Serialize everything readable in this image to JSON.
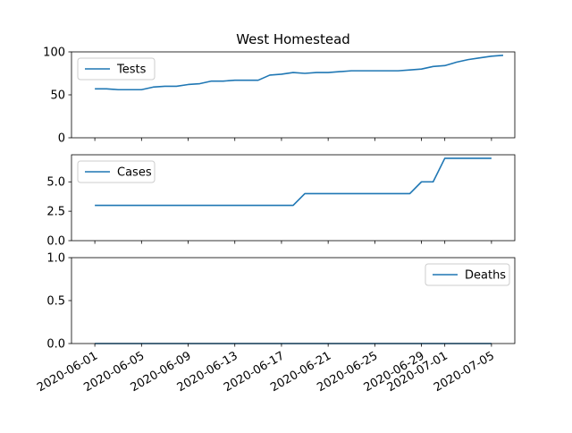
{
  "chart_data": {
    "type": "line",
    "title": "West Homestead",
    "line_color": "#1f77b4",
    "x_labels": [
      "2020-06-01",
      "2020-06-05",
      "2020-06-09",
      "2020-06-13",
      "2020-06-17",
      "2020-06-21",
      "2020-06-25",
      "2020-06-29",
      "2020-07-01",
      "2020-07-05"
    ],
    "x_label_dates": [
      "2020-06-01",
      "2020-06-05",
      "2020-06-09",
      "2020-06-13",
      "2020-06-17",
      "2020-06-21",
      "2020-06-25",
      "2020-06-29",
      "2020-07-01",
      "2020-07-05"
    ],
    "panels": [
      {
        "name": "Tests",
        "legend_position": "upper-left",
        "ylim": [
          0,
          100
        ],
        "yticks": [
          0,
          50,
          100
        ],
        "ytick_labels": [
          "0",
          "50",
          "100"
        ],
        "points": [
          [
            "2020-06-01",
            57
          ],
          [
            "2020-06-02",
            57
          ],
          [
            "2020-06-03",
            56
          ],
          [
            "2020-06-04",
            56
          ],
          [
            "2020-06-05",
            56
          ],
          [
            "2020-06-06",
            59
          ],
          [
            "2020-06-07",
            60
          ],
          [
            "2020-06-08",
            60
          ],
          [
            "2020-06-09",
            62
          ],
          [
            "2020-06-10",
            63
          ],
          [
            "2020-06-11",
            66
          ],
          [
            "2020-06-12",
            66
          ],
          [
            "2020-06-13",
            67
          ],
          [
            "2020-06-14",
            67
          ],
          [
            "2020-06-15",
            67
          ],
          [
            "2020-06-16",
            73
          ],
          [
            "2020-06-17",
            74
          ],
          [
            "2020-06-18",
            76
          ],
          [
            "2020-06-19",
            75
          ],
          [
            "2020-06-20",
            76
          ],
          [
            "2020-06-21",
            76
          ],
          [
            "2020-06-22",
            77
          ],
          [
            "2020-06-23",
            78
          ],
          [
            "2020-06-24",
            78
          ],
          [
            "2020-06-25",
            78
          ],
          [
            "2020-06-26",
            78
          ],
          [
            "2020-06-27",
            78
          ],
          [
            "2020-06-28",
            79
          ],
          [
            "2020-06-29",
            80
          ],
          [
            "2020-06-30",
            83
          ],
          [
            "2020-07-01",
            84
          ],
          [
            "2020-07-02",
            88
          ],
          [
            "2020-07-03",
            91
          ],
          [
            "2020-07-04",
            93
          ],
          [
            "2020-07-05",
            95
          ],
          [
            "2020-07-06",
            96
          ]
        ]
      },
      {
        "name": "Cases",
        "legend_position": "upper-left",
        "ylim": [
          0,
          7.3
        ],
        "yticks": [
          0,
          2.5,
          5
        ],
        "ytick_labels": [
          "0.0",
          "2.5",
          "5.0"
        ],
        "points": [
          [
            "2020-06-01",
            3
          ],
          [
            "2020-06-18",
            3
          ],
          [
            "2020-06-19",
            4
          ],
          [
            "2020-06-28",
            4
          ],
          [
            "2020-06-29",
            5
          ],
          [
            "2020-06-30",
            5
          ],
          [
            "2020-07-01",
            7
          ],
          [
            "2020-07-05",
            7
          ]
        ]
      },
      {
        "name": "Deaths",
        "legend_position": "upper-right",
        "ylim": [
          0,
          1
        ],
        "yticks": [
          0,
          0.5,
          1
        ],
        "ytick_labels": [
          "0.0",
          "0.5",
          "1.0"
        ],
        "points": [
          [
            "2020-06-01",
            0
          ],
          [
            "2020-07-05",
            0
          ]
        ]
      }
    ],
    "x_start": "2020-05-30",
    "x_end": "2020-07-07"
  }
}
